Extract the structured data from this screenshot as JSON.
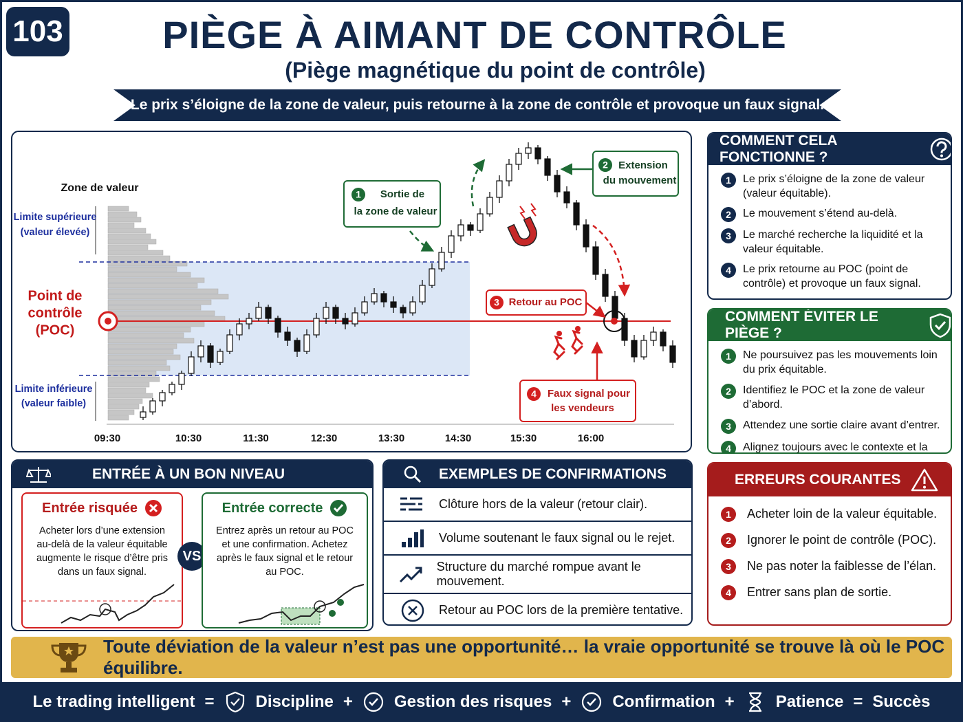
{
  "badge": 103,
  "header": {
    "title": "PIÈGE À AIMANT DE CONTRÔLE",
    "subtitle": "(Piège magnétique du point de contrôle)",
    "banner": "Le prix s’éloigne de la zone de valeur, puis retourne à la zone de contrôle et provoque un faux signal."
  },
  "chart": {
    "value_area_label": "Zone de valeur",
    "upper_label": [
      "Limite supérieure",
      "(valeur élevée)"
    ],
    "poc_label": [
      "Point de",
      "contrôle",
      "(POC)"
    ],
    "lower_label": [
      "Limite inférieure",
      "(valeur faible)"
    ],
    "times": [
      "09:30",
      "10:30",
      "11:30",
      "12:30",
      "13:30",
      "14:30",
      "15:30",
      "16:00"
    ],
    "poc": 37,
    "vah": 58.5,
    "val": 17.25,
    "profile": [
      30,
      42,
      48,
      38,
      55,
      62,
      70,
      58,
      80,
      90,
      115,
      100,
      120,
      140,
      130,
      160,
      175,
      150,
      135,
      155,
      170,
      140,
      120,
      110,
      125,
      100,
      95,
      105,
      85,
      90,
      70,
      75,
      60,
      55,
      65,
      50,
      45,
      38,
      30
    ],
    "candles": [
      [
        2,
        6,
        1,
        4
      ],
      [
        4,
        9,
        3,
        8
      ],
      [
        8,
        12,
        6,
        11
      ],
      [
        11,
        15,
        10,
        14
      ],
      [
        14,
        19,
        12,
        18
      ],
      [
        18,
        26,
        17,
        24
      ],
      [
        24,
        30,
        22,
        28
      ],
      [
        28,
        29,
        20,
        22
      ],
      [
        22,
        27,
        21,
        26
      ],
      [
        26,
        34,
        25,
        32
      ],
      [
        32,
        38,
        30,
        36
      ],
      [
        36,
        40,
        34,
        38
      ],
      [
        38,
        44,
        37,
        42
      ],
      [
        42,
        43,
        36,
        38
      ],
      [
        38,
        39,
        31,
        33
      ],
      [
        33,
        35,
        28,
        30
      ],
      [
        30,
        31,
        24,
        26
      ],
      [
        26,
        34,
        25,
        32
      ],
      [
        32,
        40,
        31,
        38
      ],
      [
        38,
        44,
        36,
        42
      ],
      [
        42,
        43,
        36,
        38
      ],
      [
        38,
        40,
        34,
        36
      ],
      [
        36,
        42,
        35,
        40
      ],
      [
        40,
        46,
        39,
        44
      ],
      [
        44,
        49,
        43,
        47
      ],
      [
        47,
        48,
        42,
        44
      ],
      [
        44,
        46,
        40,
        42
      ],
      [
        42,
        43,
        38,
        40
      ],
      [
        40,
        46,
        39,
        44
      ],
      [
        44,
        52,
        43,
        50
      ],
      [
        50,
        58,
        49,
        56
      ],
      [
        56,
        64,
        55,
        62
      ],
      [
        62,
        70,
        60,
        68
      ],
      [
        68,
        74,
        66,
        72
      ],
      [
        72,
        73,
        68,
        70
      ],
      [
        70,
        78,
        69,
        76
      ],
      [
        76,
        84,
        75,
        82
      ],
      [
        82,
        90,
        80,
        88
      ],
      [
        88,
        96,
        86,
        94
      ],
      [
        94,
        100,
        92,
        98
      ],
      [
        98,
        102,
        96,
        100
      ],
      [
        100,
        101,
        94,
        96
      ],
      [
        96,
        97,
        88,
        90
      ],
      [
        90,
        92,
        82,
        84
      ],
      [
        84,
        86,
        78,
        80
      ],
      [
        80,
        81,
        70,
        72
      ],
      [
        72,
        74,
        62,
        64
      ],
      [
        64,
        66,
        52,
        54
      ],
      [
        54,
        56,
        44,
        46
      ],
      [
        46,
        48,
        36,
        38
      ],
      [
        38,
        40,
        28,
        30
      ],
      [
        30,
        32,
        22,
        24
      ],
      [
        24,
        32,
        23,
        30
      ],
      [
        30,
        35,
        28,
        33
      ],
      [
        33,
        34,
        26,
        28
      ],
      [
        28,
        30,
        20,
        22
      ]
    ],
    "callouts": [
      {
        "n": 1,
        "lines": [
          "Sortie de",
          "la zone de valeur"
        ]
      },
      {
        "n": 2,
        "lines": [
          "Extension",
          "du mouvement"
        ]
      },
      {
        "n": 3,
        "lines": [
          "Retour au POC"
        ]
      },
      {
        "n": 4,
        "lines": [
          "Faux signal pour",
          "les vendeurs"
        ]
      }
    ]
  },
  "how_it_works": {
    "title": "COMMENT CELA FONCTIONNE ?",
    "items": [
      {
        "n": 1,
        "text": "Le prix s’éloigne de la zone de valeur (valeur équitable)."
      },
      {
        "n": 2,
        "text": "Le mouvement s’étend au-delà."
      },
      {
        "n": 3,
        "text": "Le marché recherche la liquidité et la valeur équitable."
      },
      {
        "n": 4,
        "text": "Le prix retourne au POC (point de contrôle) et provoque un faux signal."
      }
    ]
  },
  "how_to_avoid": {
    "title": "COMMENT ÉVITER LE PIÈGE ?",
    "items": [
      {
        "n": 1,
        "text": "Ne poursuivez pas les mouvements loin du prix équitable."
      },
      {
        "n": 2,
        "text": "Identifiez le POC et la zone de valeur d’abord."
      },
      {
        "n": 3,
        "text": "Attendez une sortie claire avant d’entrer."
      },
      {
        "n": 4,
        "text": "Alignez toujours avec le contexte et la structure du marché."
      }
    ]
  },
  "common_errors": {
    "title": "ERREURS COURANTES",
    "items": [
      {
        "n": 1,
        "text": "Acheter loin de la valeur équitable."
      },
      {
        "n": 2,
        "text": "Ignorer le point de contrôle (POC)."
      },
      {
        "n": 3,
        "text": "Ne pas noter la faiblesse de l’élan."
      },
      {
        "n": 4,
        "text": "Entrer sans plan de sortie."
      }
    ]
  },
  "entry": {
    "title": "ENTRÉE À UN BON NIVEAU",
    "risky": {
      "title": "Entrée risquée",
      "text": "Acheter lors d’une extension au-delà de la valeur équitable augmente le risque d’être pris dans un faux signal."
    },
    "vs": "VS",
    "correct": {
      "title": "Entrée correcte",
      "text": "Entrez après un retour au POC et une confirmation. Achetez après le faux signal et le retour au POC."
    }
  },
  "confirmations": {
    "title": "EXEMPLES DE CONFIRMATIONS",
    "items": [
      "Clôture hors de la valeur (retour clair).",
      "Volume soutenant le faux signal ou le rejet.",
      "Structure du marché rompue avant le mouvement.",
      "Retour au POC lors de la première tentative."
    ]
  },
  "quote": "Toute déviation de la valeur n’est pas une opportunité… la vraie opportunité se trouve là où le POC équilibre.",
  "footer": [
    "Le trading intelligent",
    "=",
    "Discipline",
    "+",
    "Gestion des risques",
    "+",
    "Confirmation",
    "+",
    "Patience",
    "=",
    "Succès"
  ]
}
